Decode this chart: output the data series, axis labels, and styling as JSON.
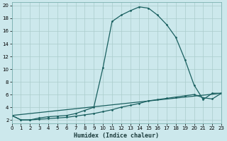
{
  "title": "",
  "xlabel": "Humidex (Indice chaleur)",
  "ylabel": "",
  "bg_color": "#cce8ec",
  "grid_color": "#aacccc",
  "line_color": "#1a6060",
  "x_ticks": [
    0,
    1,
    2,
    3,
    4,
    5,
    6,
    7,
    8,
    9,
    10,
    11,
    12,
    13,
    14,
    15,
    16,
    17,
    18,
    19,
    20,
    21,
    22,
    23
  ],
  "y_ticks": [
    2,
    4,
    6,
    8,
    10,
    12,
    14,
    16,
    18,
    20
  ],
  "xlim": [
    0,
    23
  ],
  "ylim": [
    1.5,
    20.5
  ],
  "series1_x": [
    0,
    1,
    2,
    3,
    4,
    5,
    6,
    7,
    8,
    9,
    10,
    11,
    12,
    13,
    14,
    15,
    16,
    17,
    18,
    19,
    20,
    21,
    22,
    23
  ],
  "series1_y": [
    2.7,
    2.0,
    2.0,
    2.3,
    2.5,
    2.6,
    2.7,
    3.0,
    3.5,
    4.0,
    10.2,
    17.5,
    18.5,
    19.2,
    19.8,
    19.6,
    18.5,
    17.0,
    15.0,
    11.5,
    7.5,
    5.2,
    6.2,
    6.2
  ],
  "series2_x": [
    0,
    1,
    2,
    3,
    4,
    5,
    6,
    7,
    8,
    9,
    10,
    11,
    12,
    13,
    14,
    15,
    16,
    17,
    18,
    19,
    20,
    21,
    22,
    23
  ],
  "series2_y": [
    2.7,
    2.0,
    2.0,
    2.1,
    2.2,
    2.3,
    2.4,
    2.6,
    2.8,
    3.0,
    3.3,
    3.6,
    4.0,
    4.3,
    4.6,
    5.0,
    5.2,
    5.4,
    5.6,
    5.8,
    6.0,
    5.5,
    5.3,
    6.2
  ],
  "series3_x": [
    0,
    23
  ],
  "series3_y": [
    2.7,
    6.2
  ]
}
